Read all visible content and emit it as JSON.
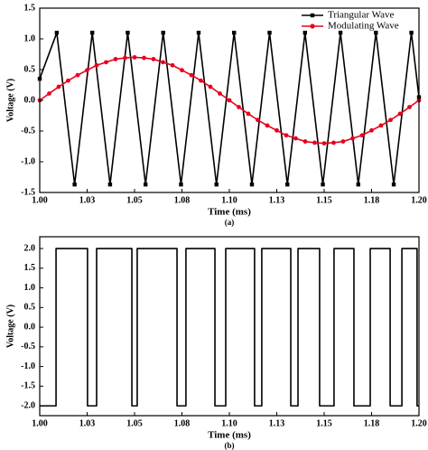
{
  "chart_data": [
    {
      "type": "line",
      "label": "(a)",
      "xlabel": "Time (ms)",
      "ylabel": "Voltage (V)",
      "xlim": [
        1.0,
        1.2
      ],
      "xticks": [
        {
          "value": 1.0,
          "label": "1.00"
        },
        {
          "value": 1.025,
          "label": "1.03"
        },
        1.05,
        {
          "value": 1.075,
          "label": "1.08"
        },
        {
          "value": 1.1,
          "label": "1.10"
        },
        {
          "value": 1.125,
          "label": "1.13"
        },
        1.15,
        {
          "value": 1.175,
          "label": "1.18"
        },
        {
          "value": 1.2,
          "label": "1.20"
        }
      ],
      "ylim": [
        -1.5,
        1.5
      ],
      "yticks": [
        1.5,
        {
          "value": 1.0,
          "label": "1.0"
        },
        0.5,
        {
          "value": 0,
          "label": "0.0"
        },
        -0.5,
        {
          "value": -1.0,
          "label": "-1.0"
        },
        -1.5
      ],
      "legend": "upper right",
      "series": [
        {
          "name": "Triangular Wave",
          "color": "#000000",
          "marker": "square",
          "x": [
            1.0,
            1.009,
            1.0184,
            1.0277,
            1.0371,
            1.0464,
            1.0558,
            1.0651,
            1.0745,
            1.0838,
            1.0932,
            1.1025,
            1.1119,
            1.1212,
            1.1306,
            1.1399,
            1.1493,
            1.1586,
            1.168,
            1.1773,
            1.1867,
            1.196,
            1.2
          ],
          "values": [
            0.35,
            1.1,
            -1.37,
            1.1,
            -1.37,
            1.1,
            -1.37,
            1.1,
            -1.37,
            1.1,
            -1.37,
            1.1,
            -1.37,
            1.1,
            -1.37,
            1.1,
            -1.37,
            1.1,
            -1.37,
            1.1,
            -1.37,
            1.1,
            0.05
          ]
        },
        {
          "name": "Modulating Wave",
          "color": "#e8001c",
          "marker": "circle",
          "x": [
            1.0,
            1.005,
            1.01,
            1.015,
            1.02,
            1.025,
            1.03,
            1.035,
            1.04,
            1.045,
            1.05,
            1.055,
            1.06,
            1.065,
            1.07,
            1.075,
            1.08,
            1.085,
            1.09,
            1.095,
            1.1,
            1.105,
            1.11,
            1.115,
            1.12,
            1.125,
            1.13,
            1.135,
            1.14,
            1.145,
            1.15,
            1.155,
            1.16,
            1.165,
            1.17,
            1.175,
            1.18,
            1.185,
            1.19,
            1.195,
            1.2
          ],
          "values": [
            0,
            0.11,
            0.22,
            0.32,
            0.41,
            0.49,
            0.57,
            0.62,
            0.67,
            0.69,
            0.7,
            0.69,
            0.67,
            0.62,
            0.57,
            0.49,
            0.41,
            0.32,
            0.22,
            0.11,
            0,
            -0.11,
            -0.22,
            -0.32,
            -0.41,
            -0.49,
            -0.57,
            -0.62,
            -0.67,
            -0.69,
            -0.7,
            -0.69,
            -0.67,
            -0.62,
            -0.57,
            -0.49,
            -0.41,
            -0.32,
            -0.22,
            -0.11,
            0
          ]
        }
      ]
    },
    {
      "type": "line",
      "label": "(b)",
      "xlabel": "Time (ms)",
      "ylabel": "Voltage (V)",
      "xlim": [
        1.0,
        1.2
      ],
      "xticks": [
        {
          "value": 1.0,
          "label": "1.00"
        },
        {
          "value": 1.025,
          "label": "1.03"
        },
        1.05,
        {
          "value": 1.075,
          "label": "1.08"
        },
        {
          "value": 1.1,
          "label": "1.10"
        },
        {
          "value": 1.125,
          "label": "1.13"
        },
        1.15,
        {
          "value": 1.175,
          "label": "1.18"
        },
        {
          "value": 1.2,
          "label": "1.20"
        }
      ],
      "ylim": [
        -2.25,
        2.3
      ],
      "yticks": [
        {
          "value": 2.0,
          "label": "2.0"
        },
        1.5,
        {
          "value": 1.0,
          "label": "1.0"
        },
        0.5,
        {
          "value": 0,
          "label": "0.0"
        },
        -0.5,
        {
          "value": -1.0,
          "label": "-1.0"
        },
        -1.5,
        {
          "value": -2.0,
          "label": "-2.0"
        }
      ],
      "series": [
        {
          "color": "#000000",
          "x": [
            1.0,
            1.0086,
            1.0086,
            1.0252,
            1.0252,
            1.03,
            1.03,
            1.0486,
            1.0486,
            1.0514,
            1.0514,
            1.0724,
            1.0724,
            1.0771,
            1.0771,
            1.0924,
            1.0924,
            1.0981,
            1.0981,
            1.1133,
            1.1133,
            1.1171,
            1.1171,
            1.1324,
            1.1324,
            1.1362,
            1.1362,
            1.1476,
            1.1476,
            1.1552,
            1.1552,
            1.1657,
            1.1657,
            1.1743,
            1.1743,
            1.1848,
            1.1848,
            1.191,
            1.191,
            1.199,
            1.199,
            1.2
          ],
          "values": [
            -2,
            -2,
            2,
            2,
            -2,
            -2,
            2,
            2,
            -2,
            -2,
            2,
            2,
            -2,
            -2,
            2,
            2,
            -2,
            -2,
            2,
            2,
            -2,
            -2,
            2,
            2,
            -2,
            -2,
            2,
            2,
            -2,
            -2,
            2,
            2,
            -2,
            -2,
            2,
            2,
            -2,
            -2,
            2,
            2,
            -2,
            -2
          ]
        }
      ]
    }
  ]
}
